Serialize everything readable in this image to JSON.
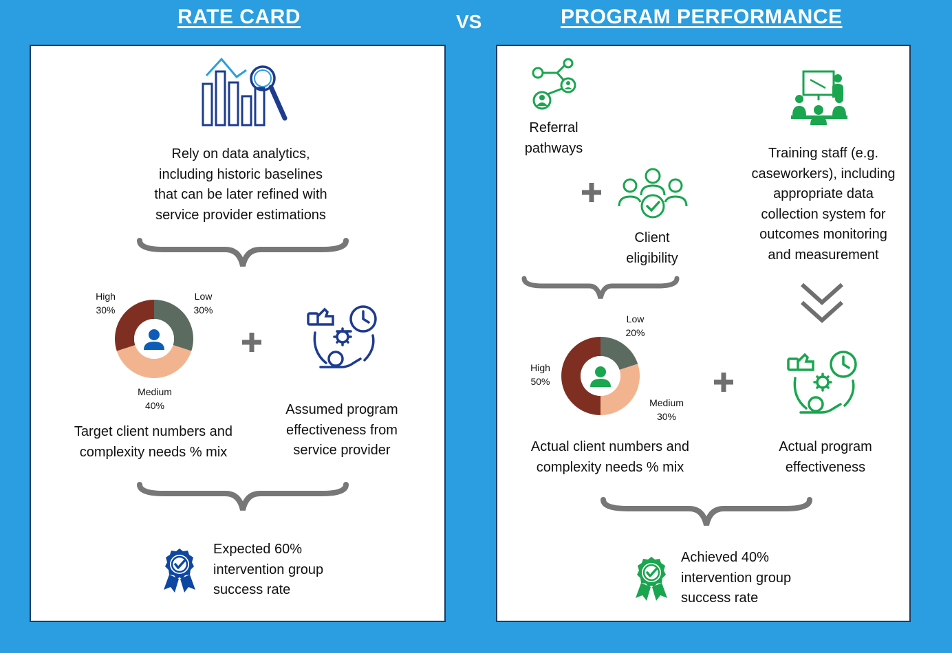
{
  "header": {
    "left_title": "RATE CARD",
    "vs": "VS",
    "right_title": "PROGRAM PERFORMANCE"
  },
  "rate_card": {
    "analytics_icon": "bar-chart-magnifier-icon",
    "analytics_text": [
      "Rely on data analytics,",
      "including historic baselines",
      "that can be later refined with",
      "service provider estimations"
    ],
    "donut": {
      "segments": [
        {
          "name": "Low",
          "percent": "30%",
          "value": 30,
          "color": "#5b6b5f"
        },
        {
          "name": "Medium",
          "percent": "40%",
          "value": 40,
          "color": "#f2b48e"
        },
        {
          "name": "High",
          "percent": "30%",
          "value": 30,
          "color": "#7e2f22"
        }
      ],
      "center_icon": "person-icon",
      "center_color": "#0d5cb8"
    },
    "plus": "+",
    "client_text": [
      "Target client numbers and",
      "complexity needs % mix"
    ],
    "effectiveness_icon": "effectiveness-gear-clock-icon",
    "effectiveness_text": [
      "Assumed program",
      "effectiveness from",
      "service provider"
    ],
    "result_icon": "award-badge-icon",
    "result_text": [
      "Expected 60%",
      "intervention group",
      "success rate"
    ],
    "accent": "#0d47a1"
  },
  "program_performance": {
    "referral_icon": "network-people-icon",
    "referral_text": [
      "Referral",
      "pathways"
    ],
    "plus": "+",
    "eligibility_icon": "group-check-icon",
    "eligibility_text": [
      "Client",
      "eligibility"
    ],
    "training_icon": "presentation-meeting-icon",
    "training_text": [
      "Training staff (e.g.",
      "caseworkers), including",
      "appropriate data",
      "collection system for",
      "outcomes monitoring",
      "and measurement"
    ],
    "chevron_icon": "double-chevron-down-icon",
    "donut": {
      "segments": [
        {
          "name": "Low",
          "percent": "20%",
          "value": 20,
          "color": "#5b6b5f"
        },
        {
          "name": "Medium",
          "percent": "30%",
          "value": 30,
          "color": "#f2b48e"
        },
        {
          "name": "High",
          "percent": "50%",
          "value": 50,
          "color": "#7e2f22"
        }
      ],
      "center_icon": "person-icon",
      "center_color": "#1aa54f"
    },
    "plus2": "+",
    "client_text": [
      "Actual client numbers and",
      "complexity needs % mix"
    ],
    "effectiveness_icon": "effectiveness-gear-clock-icon",
    "effectiveness_text": [
      "Actual program",
      "effectiveness"
    ],
    "result_icon": "award-badge-icon",
    "result_text": [
      "Achieved 40%",
      "intervention group",
      "success rate"
    ],
    "accent": "#1aa54f"
  },
  "colors": {
    "background": "#2a9ee0",
    "brace": "#777777",
    "plus": "#6f6f6f",
    "blue_icon": "#1d3b8f",
    "green_icon": "#1aa54f"
  }
}
